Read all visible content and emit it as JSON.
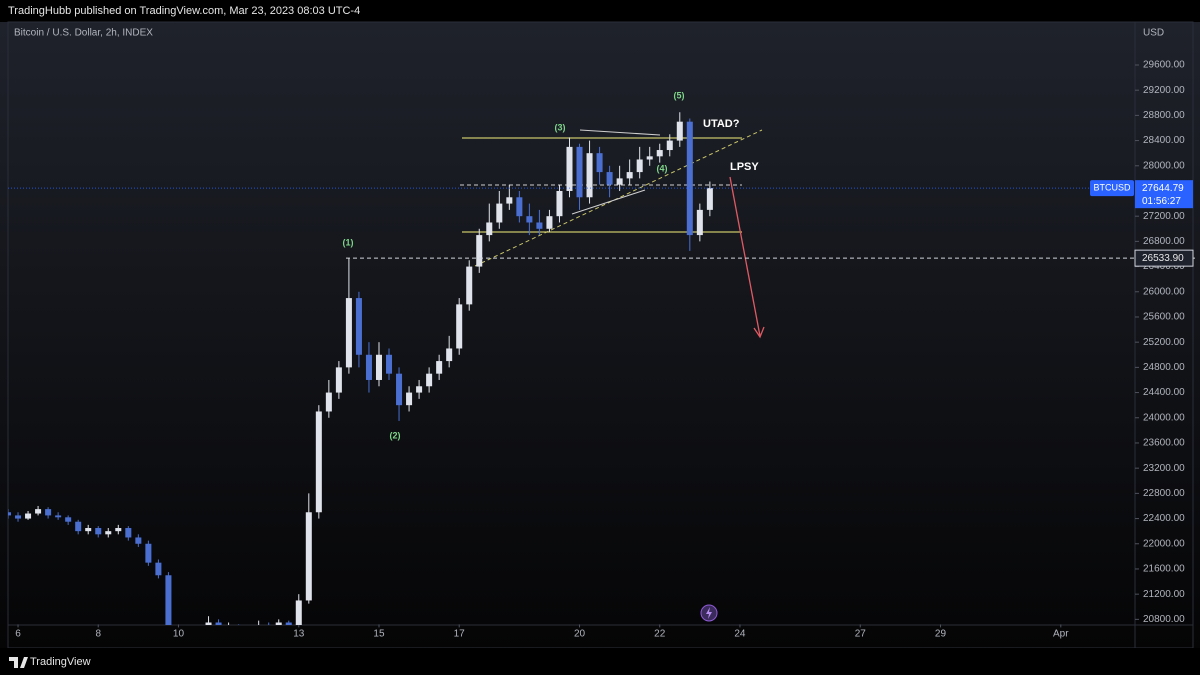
{
  "header": "TradingHubb published on TradingView.com, Mar 23, 2023 08:03 UTC-4",
  "footer": "TradingView",
  "chart_data": {
    "type": "candlestick",
    "title": "Bitcoin / U.S. Dollar, 2h, INDEX",
    "y_axis_label": "USD",
    "symbol": "BTCUSD",
    "last_price": 27644.79,
    "countdown": "01:56:27",
    "level": {
      "value": 26533.9,
      "label": "26533.90"
    },
    "annotations": [
      "(1)",
      "(2)",
      "(3)",
      "(4)",
      "(5)",
      "UTAD?",
      "LPSY"
    ],
    "up_color": "#e0e3eb",
    "down_color": "#4a6fd1",
    "x": [
      5.75,
      6,
      6.25,
      6.5,
      6.75,
      7,
      7.25,
      7.5,
      7.75,
      8,
      8.25,
      8.5,
      8.75,
      9,
      9.25,
      9.5,
      9.75,
      10,
      10.25,
      10.5,
      10.75,
      11,
      11.25,
      11.5,
      11.75,
      12,
      12.25,
      12.5,
      12.75,
      13,
      13.25,
      13.5,
      13.75,
      14,
      14.25,
      14.5,
      14.75,
      15,
      15.25,
      15.5,
      15.75,
      16,
      16.25,
      16.5,
      16.75,
      17,
      17.25,
      17.5,
      17.75,
      18,
      18.25,
      18.5,
      18.75,
      19,
      19.25,
      19.5,
      19.75,
      20,
      20.25,
      20.5,
      20.75,
      21,
      21.25,
      21.5,
      21.75,
      22,
      22.25,
      22.5,
      22.75,
      23,
      23.25
    ],
    "open": [
      22500,
      22450,
      22400,
      22480,
      22550,
      22450,
      22420,
      22350,
      22200,
      22250,
      22150,
      22200,
      22250,
      22100,
      22000,
      21700,
      21500,
      20200,
      20100,
      20300,
      20400,
      20750,
      20600,
      20700,
      20500,
      20650,
      20700,
      20600,
      20750,
      20650,
      21100,
      22500,
      24100,
      24400,
      24800,
      25900,
      25000,
      24600,
      25000,
      24700,
      24200,
      24400,
      24500,
      24700,
      24900,
      25100,
      25800,
      26400,
      26900,
      27100,
      27400,
      27500,
      27200,
      27100,
      27000,
      27200,
      27600,
      28300,
      27500,
      28200,
      27900,
      27700,
      27800,
      27900,
      28100,
      28150,
      28250,
      28400,
      28700,
      26900,
      27300
    ],
    "high": [
      22550,
      22500,
      22520,
      22600,
      22580,
      22500,
      22450,
      22380,
      22300,
      22280,
      22250,
      22300,
      22280,
      22150,
      22050,
      21750,
      21550,
      20300,
      20400,
      20500,
      20850,
      20800,
      20750,
      20720,
      20700,
      20780,
      20750,
      20800,
      20780,
      21200,
      22800,
      24200,
      24600,
      24900,
      26533.9,
      26000,
      25200,
      25200,
      25100,
      24800,
      24500,
      24600,
      24800,
      25000,
      25300,
      25900,
      26500,
      27000,
      27400,
      27600,
      27700,
      27600,
      27400,
      27300,
      27300,
      27700,
      28450,
      28350,
      28400,
      28300,
      28000,
      28000,
      28100,
      28300,
      28300,
      28350,
      28500,
      28850,
      28750,
      27400,
      27750
    ],
    "low": [
      22400,
      22350,
      22380,
      22450,
      22400,
      22380,
      22300,
      22150,
      22150,
      22100,
      22100,
      22150,
      22050,
      21950,
      21650,
      21450,
      20100,
      20000,
      20050,
      20250,
      20350,
      20550,
      20550,
      20450,
      20450,
      20600,
      20550,
      20550,
      20600,
      20600,
      21050,
      22400,
      24000,
      24300,
      24700,
      24800,
      24400,
      24500,
      24600,
      23950,
      24100,
      24300,
      24400,
      24600,
      24800,
      25000,
      25700,
      26300,
      26800,
      27000,
      27300,
      27100,
      26900,
      26900,
      26950,
      27100,
      27500,
      27300,
      27400,
      27700,
      27500,
      27600,
      27700,
      27800,
      28000,
      28050,
      28150,
      28300,
      26650,
      26800,
      27200
    ],
    "close": [
      22450,
      22400,
      22480,
      22550,
      22450,
      22420,
      22350,
      22200,
      22250,
      22150,
      22200,
      22250,
      22100,
      22000,
      21700,
      21500,
      20200,
      20100,
      20300,
      20400,
      20750,
      20600,
      20700,
      20500,
      20650,
      20700,
      20600,
      20750,
      20650,
      21100,
      22500,
      24100,
      24400,
      24800,
      25900,
      25000,
      24600,
      25000,
      24700,
      24200,
      24400,
      24500,
      24700,
      24900,
      25100,
      25800,
      26400,
      26900,
      27100,
      27400,
      27500,
      27200,
      27100,
      27000,
      27200,
      27600,
      28300,
      27500,
      28200,
      27900,
      27700,
      27800,
      27900,
      28100,
      28150,
      28250,
      28400,
      28700,
      26900,
      27300,
      27644.79
    ],
    "xlim": [
      5.75,
      33.85
    ],
    "xticks": [
      6,
      8,
      10,
      13,
      15,
      17,
      20,
      22,
      24,
      27,
      29,
      {
        "value": 32,
        "label": "Apr"
      }
    ],
    "ylim": [
      20720,
      30230
    ],
    "yticks": [
      {
        "value": 20800,
        "label": "20800.00"
      },
      {
        "value": 21200,
        "label": "21200.00"
      },
      {
        "value": 21600,
        "label": "21600.00"
      },
      {
        "value": 22000,
        "label": "22000.00"
      },
      {
        "value": 22400,
        "label": "22400.00"
      },
      {
        "value": 22800,
        "label": "22800.00"
      },
      {
        "value": 23200,
        "label": "23200.00"
      },
      {
        "value": 23600,
        "label": "23600.00"
      },
      {
        "value": 24000,
        "label": "24000.00"
      },
      {
        "value": 24400,
        "label": "24400.00"
      },
      {
        "value": 24800,
        "label": "24800.00"
      },
      {
        "value": 25200,
        "label": "25200.00"
      },
      {
        "value": 25600,
        "label": "25600.00"
      },
      {
        "value": 26000,
        "label": "26000.00"
      },
      {
        "value": 26400,
        "label": "26400.00"
      },
      {
        "value": 26800,
        "label": "26800.00"
      },
      {
        "value": 27200,
        "label": "27200.00"
      },
      {
        "value": 27600,
        "label": "27600.00"
      },
      {
        "value": 28000,
        "label": "28000.00"
      },
      {
        "value": 28400,
        "label": "28400.00"
      },
      {
        "value": 28800,
        "label": "28800.00"
      },
      {
        "value": 29200,
        "label": "29200.00"
      },
      {
        "value": 29600,
        "label": "29600.00"
      }
    ]
  }
}
